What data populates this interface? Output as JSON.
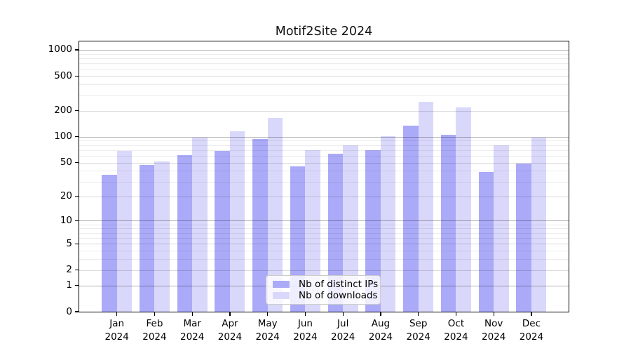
{
  "chart_data": {
    "type": "bar",
    "title": "Motif2Site 2024",
    "categories": [
      "Jan",
      "Feb",
      "Mar",
      "Apr",
      "May",
      "Jun",
      "Jul",
      "Aug",
      "Sep",
      "Oct",
      "Nov",
      "Dec"
    ],
    "year": "2024",
    "series": [
      {
        "name": "Nb of distinct IPs",
        "color": "#aaaaf8",
        "values": [
          36,
          47,
          61,
          69,
          94,
          45,
          64,
          70,
          135,
          105,
          39,
          49
        ]
      },
      {
        "name": "Nb of downloads",
        "color": "#d9d8fb",
        "values": [
          69,
          52,
          97,
          116,
          164,
          70,
          79,
          101,
          253,
          218,
          79,
          98
        ]
      }
    ],
    "yscale": "log1p",
    "yticks": [
      0,
      1,
      2,
      5,
      10,
      20,
      50,
      100,
      200,
      500,
      1000
    ],
    "ylim": [
      0,
      1250
    ],
    "xlabel": "",
    "ylabel": "",
    "grid": true,
    "legend_position": "lower center",
    "colors": {
      "grid_major": "#b0b0b0",
      "grid_mid": "#d9d9d9",
      "grid_minor": "#ebebeb",
      "axis": "#000000",
      "legend_border": "#cccccc",
      "background": "#ffffff"
    }
  }
}
